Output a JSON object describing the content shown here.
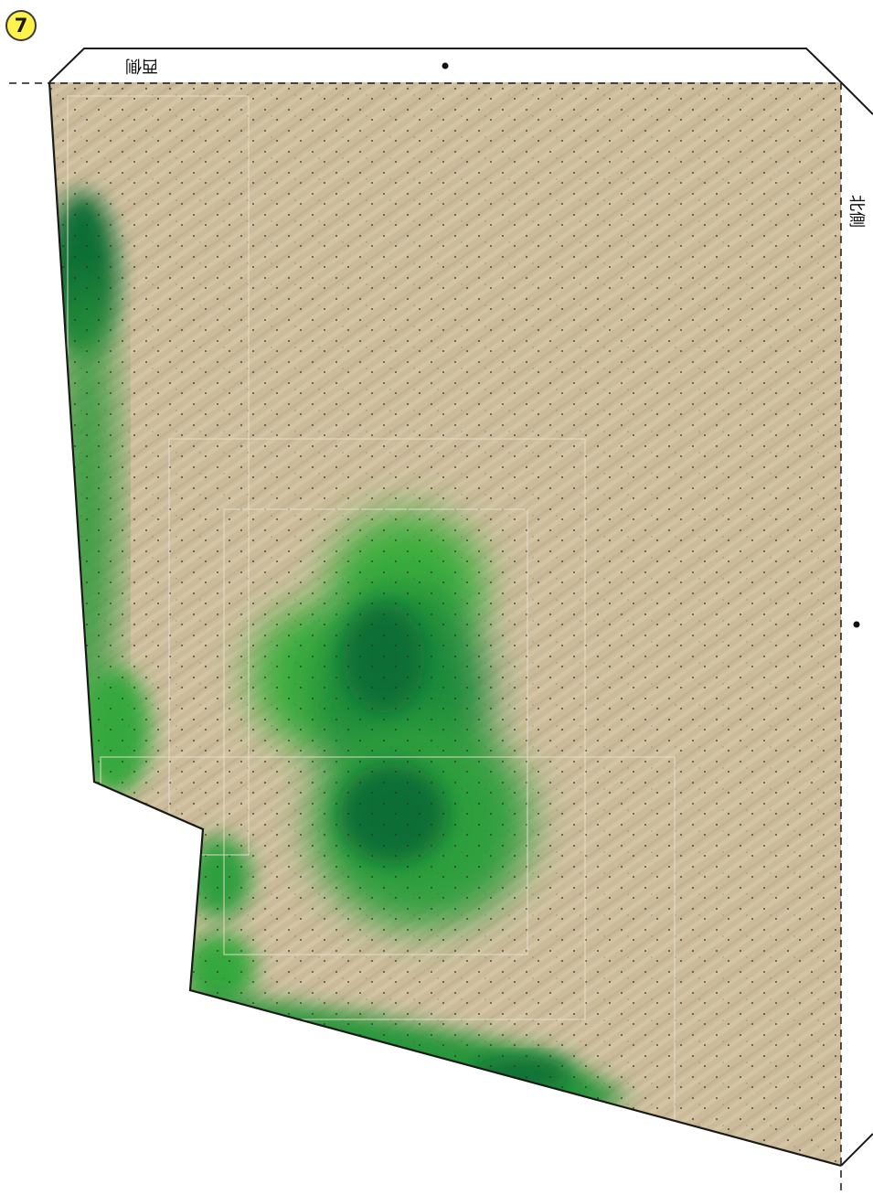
{
  "page_number": "7",
  "side_labels": {
    "west": "西側",
    "north": "北側"
  },
  "colors": {
    "ground": "#cdbd9c",
    "grass_dark": "#0b6e35",
    "grass_light": "#3cae3e",
    "outline": "#1a1a1a",
    "page_number_fill": "#fff24a"
  },
  "icons": {
    "registration_dot": "small-black-dot"
  }
}
